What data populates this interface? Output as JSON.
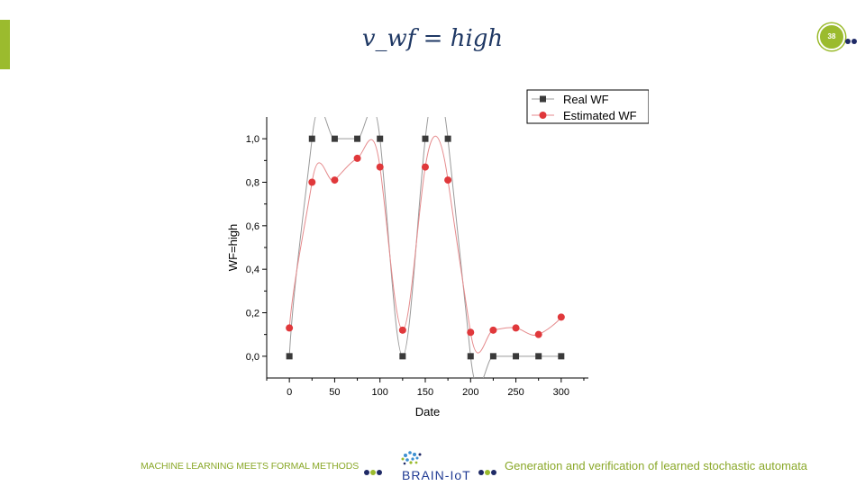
{
  "slide": {
    "title": "v_wf = high",
    "page_number": "38"
  },
  "footer": {
    "left_text": "MACHINE LEARNING MEETS FORMAL METHODS",
    "logo_text": "BRAIN-IoT",
    "right_text": "Generation and verification  of learned stochastic automata"
  },
  "colors": {
    "accent_green": "#9bbb2e",
    "navy": "#1f2a66",
    "title_blue": "#1f3864",
    "real_series": "#3a3a3a",
    "estimated_series": "#e0383b"
  },
  "chart_data": {
    "type": "scatter",
    "xlabel": "Date",
    "ylabel": "WF=high",
    "xlim": [
      -25,
      330
    ],
    "ylim": [
      -0.1,
      1.1
    ],
    "x_ticks": [
      0,
      50,
      100,
      150,
      200,
      250,
      300
    ],
    "x_tick_labels": [
      "0",
      "50",
      "100",
      "150",
      "200",
      "250",
      "300"
    ],
    "y_ticks": [
      0.0,
      0.2,
      0.4,
      0.6,
      0.8,
      1.0
    ],
    "y_tick_labels": [
      "0,0",
      "0,2",
      "0,4",
      "0,6",
      "0,8",
      "1,0"
    ],
    "legend": "top-right",
    "x": [
      0,
      25,
      50,
      75,
      100,
      125,
      150,
      175,
      200,
      225,
      250,
      275,
      300
    ],
    "series": [
      {
        "name": "Real WF",
        "marker": "square",
        "values": [
          0,
          1,
          1,
          1,
          1,
          0,
          1,
          1,
          0,
          0,
          0,
          0,
          0
        ]
      },
      {
        "name": "Estimated WF",
        "marker": "circle",
        "values": [
          0.13,
          0.8,
          0.81,
          0.91,
          0.87,
          0.12,
          0.87,
          0.81,
          0.11,
          0.12,
          0.13,
          0.1,
          0.18
        ]
      }
    ]
  }
}
